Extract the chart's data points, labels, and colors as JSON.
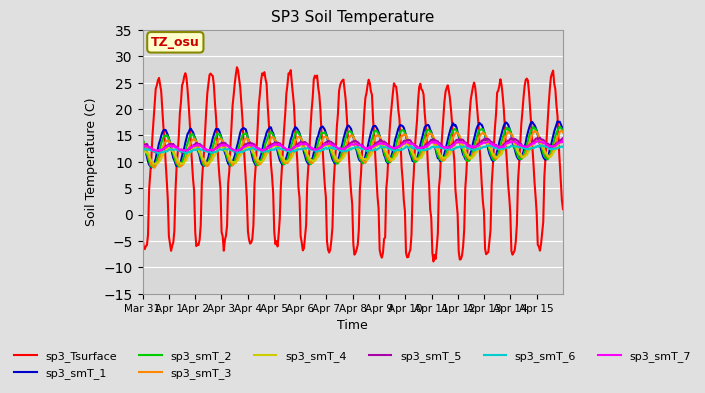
{
  "title": "SP3 Soil Temperature",
  "ylabel": "Soil Temperature (C)",
  "xlabel": "Time",
  "tz_label": "TZ_osu",
  "ylim": [
    -15,
    35
  ],
  "background_color": "#e0e0e0",
  "plot_bg_color": "#d8d8d8",
  "series": {
    "sp3_Tsurface": {
      "color": "#ff0000",
      "lw": 1.5
    },
    "sp3_smT_1": {
      "color": "#0000cc",
      "lw": 1.5
    },
    "sp3_smT_2": {
      "color": "#00cc00",
      "lw": 1.5
    },
    "sp3_smT_3": {
      "color": "#ff8800",
      "lw": 1.5
    },
    "sp3_smT_4": {
      "color": "#cccc00",
      "lw": 1.5
    },
    "sp3_smT_5": {
      "color": "#aa00aa",
      "lw": 1.5
    },
    "sp3_smT_6": {
      "color": "#00cccc",
      "lw": 1.5
    },
    "sp3_smT_7": {
      "color": "#ff00ff",
      "lw": 1.5
    }
  },
  "x_tick_positions": [
    0,
    1,
    2,
    3,
    4,
    5,
    6,
    7,
    8,
    9,
    10,
    11,
    12,
    13,
    14,
    15
  ],
  "x_tick_labels": [
    "Mar 31",
    "Apr 1",
    "Apr 2",
    "Apr 3",
    "Apr 4",
    "Apr 5",
    "Apr 6",
    "Apr 7",
    "Apr 8",
    "Apr 9",
    "Apr 10",
    "Apr 11",
    "Apr 12",
    "Apr 13",
    "Apr 14",
    "Apr 15"
  ],
  "grid_color": "#ffffff",
  "yticks": [
    -15,
    -10,
    -5,
    0,
    5,
    10,
    15,
    20,
    25,
    30,
    35
  ],
  "n_days": 16,
  "legend_series": [
    "sp3_Tsurface",
    "sp3_smT_1",
    "sp3_smT_2",
    "sp3_smT_3",
    "sp3_smT_4",
    "sp3_smT_5",
    "sp3_smT_6",
    "sp3_smT_7"
  ]
}
